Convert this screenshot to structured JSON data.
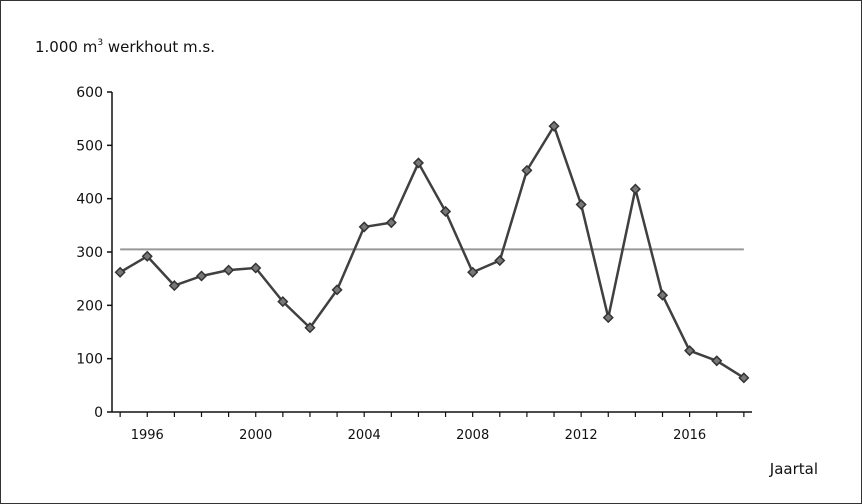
{
  "chart_data": {
    "type": "line",
    "ylabel_prefix": "1.000 m",
    "ylabel_sup": "3",
    "ylabel_suffix": " werkhout m.s.",
    "xlabel": "Jaartal",
    "x": [
      1995,
      1996,
      1997,
      1998,
      1999,
      2000,
      2001,
      2002,
      2003,
      2004,
      2005,
      2006,
      2007,
      2008,
      2009,
      2010,
      2011,
      2012,
      2013,
      2014,
      2015,
      2016,
      2017,
      2018
    ],
    "series": [
      {
        "values": [
          262,
          292,
          237,
          255,
          266,
          270,
          207,
          158,
          229,
          347,
          355,
          467,
          376,
          262,
          284,
          453,
          536,
          389,
          177,
          418,
          219,
          115,
          96,
          64
        ],
        "color": "#404040",
        "marker": "diamond"
      },
      {
        "values": [
          305,
          305,
          305,
          305,
          305,
          305,
          305,
          305,
          305,
          305,
          305,
          305,
          305,
          305,
          305,
          305,
          305,
          305,
          305,
          305,
          305,
          305,
          305,
          305
        ],
        "color": "#999999"
      }
    ],
    "xticks": [
      "1996",
      "2000",
      "2004",
      "2008",
      "2012",
      "2016"
    ],
    "xtick_values": [
      1996,
      2000,
      2004,
      2008,
      2012,
      2016
    ],
    "yticks": [
      "0",
      "100",
      "200",
      "300",
      "400",
      "500",
      "600"
    ],
    "ylim": [
      0,
      600
    ],
    "xlim": [
      1994.7,
      2018.3
    ],
    "grid": false
  }
}
